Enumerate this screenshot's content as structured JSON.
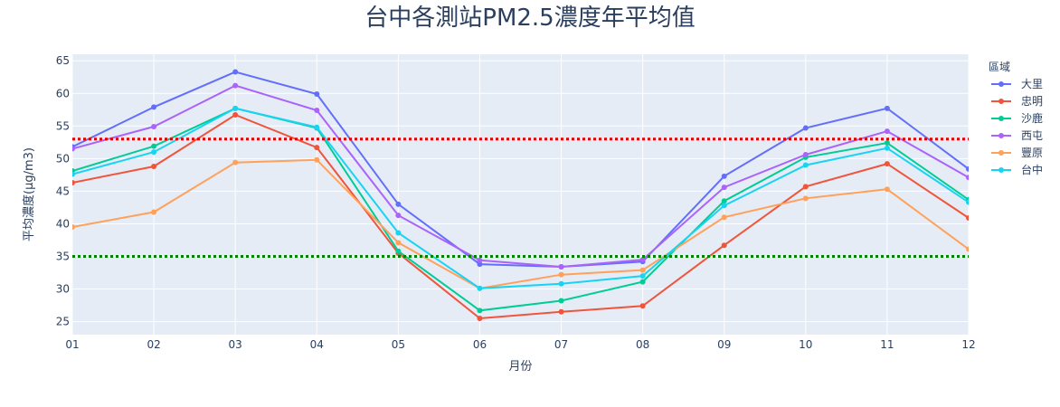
{
  "chart_data": {
    "type": "line",
    "title": "台中各測站PM2.5濃度年平均值",
    "xlabel": "月份",
    "ylabel": "平均濃度(μg/m3)",
    "categories": [
      "01",
      "02",
      "03",
      "04",
      "05",
      "06",
      "07",
      "08",
      "09",
      "10",
      "11",
      "12"
    ],
    "ylim": [
      23,
      66
    ],
    "yticks": [
      25,
      30,
      35,
      40,
      45,
      50,
      55,
      60,
      65
    ],
    "grid": true,
    "legend": {
      "title": "區域",
      "placement": "right"
    },
    "series": [
      {
        "name": "大里",
        "color": "#636efa",
        "values": [
          51.8,
          57.9,
          63.3,
          59.9,
          43.0,
          33.8,
          33.4,
          34.2,
          47.3,
          54.7,
          57.7,
          48.4
        ]
      },
      {
        "name": "忠明",
        "color": "#ef553b",
        "values": [
          46.3,
          48.8,
          56.7,
          51.7,
          35.5,
          25.5,
          26.5,
          27.4,
          36.7,
          45.7,
          49.2,
          40.9
        ]
      },
      {
        "name": "沙鹿",
        "color": "#00cc96",
        "values": [
          48.1,
          51.9,
          57.7,
          54.7,
          35.8,
          26.7,
          28.2,
          31.1,
          43.5,
          50.2,
          52.4,
          43.7
        ]
      },
      {
        "name": "西屯",
        "color": "#ab63fa",
        "values": [
          51.5,
          54.9,
          61.2,
          57.4,
          41.3,
          34.4,
          33.4,
          34.5,
          45.6,
          50.6,
          54.2,
          47.1
        ]
      },
      {
        "name": "豐原",
        "color": "#ffa15a",
        "values": [
          39.5,
          41.8,
          49.4,
          49.8,
          37.1,
          30.1,
          32.2,
          32.9,
          41.0,
          43.9,
          45.3,
          36.1
        ]
      },
      {
        "name": "台中",
        "color": "#19d3f3",
        "values": [
          47.6,
          51.0,
          57.7,
          54.8,
          38.6,
          30.1,
          30.8,
          32.0,
          42.8,
          49.0,
          51.6,
          43.3
        ]
      }
    ],
    "reference_lines": [
      {
        "value": 53,
        "color": "#e00000",
        "style": "dotted"
      },
      {
        "value": 35,
        "color": "#008000",
        "style": "dotted"
      }
    ]
  }
}
